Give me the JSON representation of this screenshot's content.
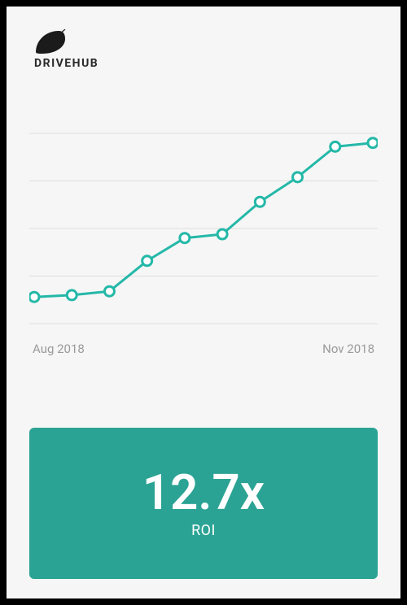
{
  "brand": {
    "name": "DRIVEHUB",
    "logo_color": "#1b1b1b"
  },
  "chart": {
    "type": "line",
    "background": "#f6f6f6",
    "line_color": "#24b8a8",
    "line_width": 3,
    "marker_fill": "#ffffff",
    "marker_stroke": "#24b8a8",
    "marker_stroke_width": 3,
    "marker_radius": 6,
    "grid_color": "#dedede",
    "grid_width": 1,
    "grid_lines_y": [
      0.0,
      0.25,
      0.5,
      0.75,
      1.0
    ],
    "ylim": [
      0,
      1
    ],
    "x_labels": {
      "start": "Aug 2018",
      "end": "Nov 2018"
    },
    "x_label_color": "#9a9a9a",
    "x_label_fontsize": 15,
    "points_y": [
      0.14,
      0.15,
      0.17,
      0.33,
      0.45,
      0.47,
      0.64,
      0.77,
      0.93,
      0.95
    ]
  },
  "roi": {
    "value": "12.7x",
    "label": "ROI",
    "card_bg": "#2ba394",
    "value_color": "#ffffff",
    "value_fontsize": 60,
    "label_fontsize": 18
  }
}
